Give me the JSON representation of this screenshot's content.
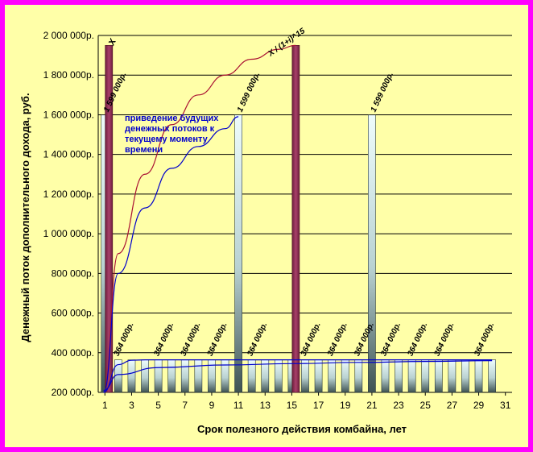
{
  "chart_data": {
    "type": "bar",
    "xlabel": "Срок полезного действия  комбайна, лет",
    "ylabel": "Денежный поток дополнительного дохода, руб.",
    "ylim": [
      200000,
      2000000
    ],
    "yticks": [
      "200 000р.",
      "400 000р.",
      "600 000р.",
      "800 000р.",
      "1 000 000р.",
      "1 200 000р.",
      "1 400 000р.",
      "1 600 000р.",
      "1 800 000р.",
      "2 000 000р."
    ],
    "ytick_values": [
      200000,
      400000,
      600000,
      800000,
      1000000,
      1200000,
      1400000,
      1600000,
      1800000,
      2000000
    ],
    "xticks": [
      "1",
      "3",
      "5",
      "7",
      "9",
      "11",
      "13",
      "15",
      "17",
      "19",
      "21",
      "23",
      "25",
      "27",
      "29",
      "31"
    ],
    "grid": true,
    "colors": {
      "cash_bar": "#e8fbfb",
      "cash_bar_dark": "#4a5e5e",
      "highlight_bar": "#8b2c4f",
      "blue_curve": "#0000cc",
      "red_curve": "#aa1133",
      "plot_bg": "#ffffa8",
      "border": "#ff00ff"
    },
    "series": [
      {
        "values": [
          1599000,
          364000,
          364000,
          364000,
          364000,
          364000,
          364000,
          364000,
          364000,
          364000,
          1599000,
          364000,
          364000,
          364000,
          364000,
          364000,
          364000,
          364000,
          364000,
          364000,
          1599000,
          364000,
          364000,
          364000,
          364000,
          364000,
          364000,
          364000,
          364000,
          364000
        ]
      },
      {
        "points": [
          [
            1.3,
            1950000
          ],
          [
            15.3,
            1950000
          ]
        ]
      }
    ],
    "curves": [
      {
        "color": "red",
        "points": [
          [
            0.9,
            200000
          ],
          [
            2,
            900000
          ],
          [
            4,
            1300000
          ],
          [
            6,
            1550000
          ],
          [
            8,
            1700000
          ],
          [
            10,
            1800000
          ],
          [
            12,
            1880000
          ],
          [
            14,
            1930000
          ],
          [
            15.3,
            1950000
          ]
        ]
      },
      {
        "color": "blue",
        "points": [
          [
            0.9,
            200000
          ],
          [
            2,
            800000
          ],
          [
            4,
            1130000
          ],
          [
            6,
            1330000
          ],
          [
            8,
            1440000
          ],
          [
            10,
            1530000
          ],
          [
            11,
            1590000
          ]
        ]
      },
      {
        "color": "blue",
        "points": [
          [
            0.9,
            210000
          ],
          [
            2,
            290000
          ],
          [
            5,
            325000
          ],
          [
            10,
            338000
          ],
          [
            15,
            345000
          ],
          [
            20,
            351000
          ],
          [
            25,
            356000
          ],
          [
            30,
            360000
          ]
        ]
      },
      {
        "color": "blue",
        "points": [
          [
            0.9,
            200000
          ],
          [
            2,
            340000
          ],
          [
            3,
            362000
          ],
          [
            4,
            364000
          ],
          [
            30,
            364000
          ]
        ]
      }
    ],
    "data_labels": [
      {
        "x": 1,
        "text": "1 599 000р."
      },
      {
        "x": 11,
        "text": "1 599 000р."
      },
      {
        "x": 21,
        "text": "1 599 000р."
      },
      {
        "x": 2,
        "text": "364 000р."
      },
      {
        "x": 5,
        "text": "364 000р."
      },
      {
        "x": 7,
        "text": "364 000р."
      },
      {
        "x": 9,
        "text": "364 000р."
      },
      {
        "x": 12,
        "text": "364 000р."
      },
      {
        "x": 16,
        "text": "364 000р."
      },
      {
        "x": 18,
        "text": "364 000р."
      },
      {
        "x": 20,
        "text": "364 000р."
      },
      {
        "x": 22,
        "text": "364 000р."
      },
      {
        "x": 24,
        "text": "364 000р."
      },
      {
        "x": 26,
        "text": "364 000р."
      },
      {
        "x": 29,
        "text": "364 000р."
      }
    ],
    "annotations": {
      "note_lines": [
        "приведение будущих",
        "денежных потоков к",
        "текущему моменту",
        "времени"
      ],
      "formula_x": "X",
      "formula": "X / (1+i)^15"
    }
  }
}
